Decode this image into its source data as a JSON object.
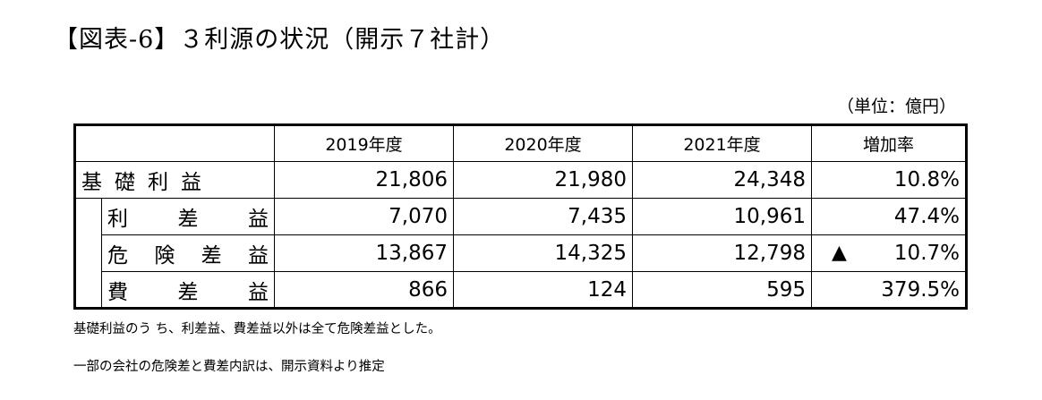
{
  "title": "【図表-6】３利源の状況（開示７社計）",
  "unit": "（単位：億円）",
  "header": {
    "empty": "",
    "col1": "2019年度",
    "col2": "2020年度",
    "col3": "2021年度",
    "col4": "増加率"
  },
  "rows": [
    {
      "label": "基礎利益",
      "chars": [
        "基",
        "礎",
        "利",
        "益"
      ],
      "v2019": "21,806",
      "v2020": "21,980",
      "v2021": "24,348",
      "rate": "10.8%",
      "negative": false
    },
    {
      "label": "利差益",
      "chars": [
        "利",
        "差",
        "益"
      ],
      "v2019": "7,070",
      "v2020": "7,435",
      "v2021": "10,961",
      "rate": "47.4%",
      "negative": false
    },
    {
      "label": "危険差益",
      "chars": [
        "危",
        "険",
        "差",
        "益"
      ],
      "v2019": "13,867",
      "v2020": "14,325",
      "v2021": "12,798",
      "rate": "10.7%",
      "negative": true,
      "neg_mark": "▲"
    },
    {
      "label": "費差益",
      "chars": [
        "費",
        "差",
        "益"
      ],
      "v2019": "866",
      "v2020": "124",
      "v2021": "595",
      "rate": "379.5%",
      "negative": false
    }
  ],
  "notes": [
    "基礎利益のう ち、利差益、費差益以外は全て危険差益とした。",
    "一部の会社の危険差と費差内訳は、開示資料より推定"
  ]
}
